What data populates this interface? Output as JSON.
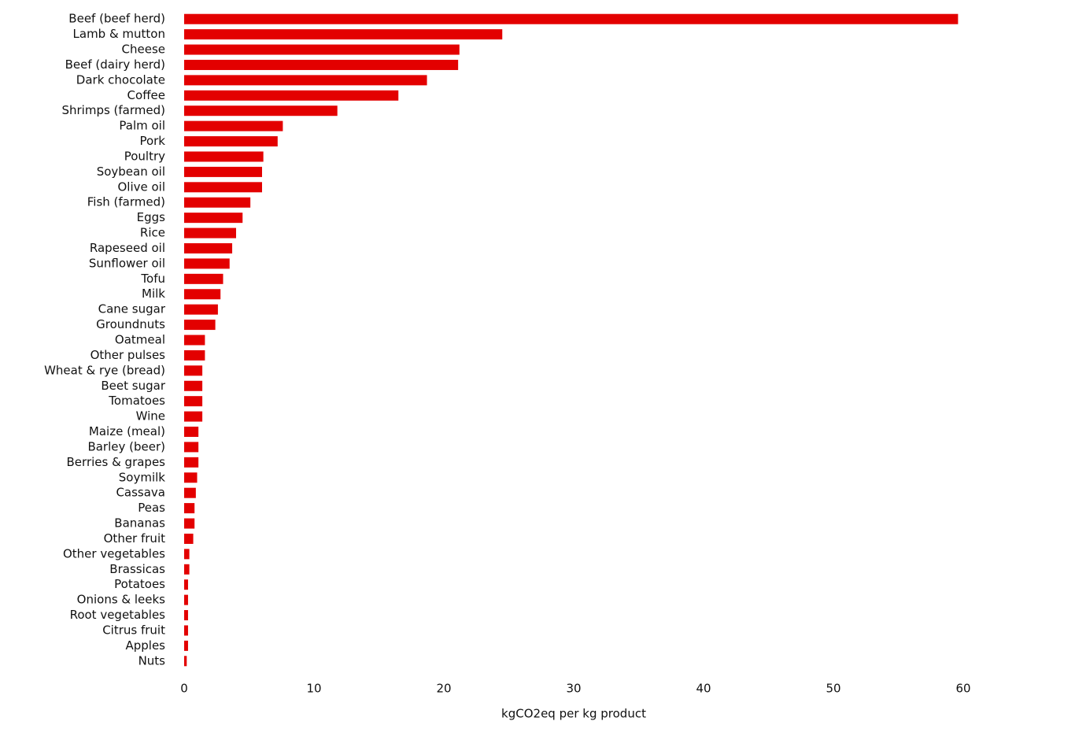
{
  "chart_data": {
    "type": "barh",
    "x_label": "kgCO2eq per kg product",
    "categories": [
      "Beef (beef herd)",
      "Lamb & mutton",
      "Cheese",
      "Beef (dairy herd)",
      "Dark chocolate",
      "Coffee",
      "Shrimps (farmed)",
      "Palm oil",
      "Pork",
      "Poultry",
      "Soybean oil",
      "Olive oil",
      "Fish (farmed)",
      "Eggs",
      "Rice",
      "Rapeseed oil",
      "Sunflower oil",
      "Tofu",
      "Milk",
      "Cane sugar",
      "Groundnuts",
      "Oatmeal",
      "Other pulses",
      "Wheat & rye (bread)",
      "Beet sugar",
      "Tomatoes",
      "Wine",
      "Maize (meal)",
      "Barley (beer)",
      "Berries & grapes",
      "Soymilk",
      "Cassava",
      "Peas",
      "Bananas",
      "Other fruit",
      "Other vegetables",
      "Brassicas",
      "Potatoes",
      "Onions & leeks",
      "Root vegetables",
      "Citrus fruit",
      "Apples",
      "Nuts"
    ],
    "values": [
      59.6,
      24.5,
      21.2,
      21.1,
      18.7,
      16.5,
      11.8,
      7.6,
      7.2,
      6.1,
      6.0,
      6.0,
      5.1,
      4.5,
      4.0,
      3.7,
      3.5,
      3.0,
      2.8,
      2.6,
      2.4,
      1.6,
      1.6,
      1.4,
      1.4,
      1.4,
      1.4,
      1.1,
      1.1,
      1.1,
      1.0,
      0.9,
      0.8,
      0.8,
      0.7,
      0.4,
      0.4,
      0.3,
      0.3,
      0.3,
      0.3,
      0.3,
      0.2
    ],
    "color": "#e30000",
    "xlim": [
      0,
      60
    ],
    "xticks": [
      0,
      10,
      20,
      30,
      40,
      50,
      60
    ],
    "grid": false
  }
}
